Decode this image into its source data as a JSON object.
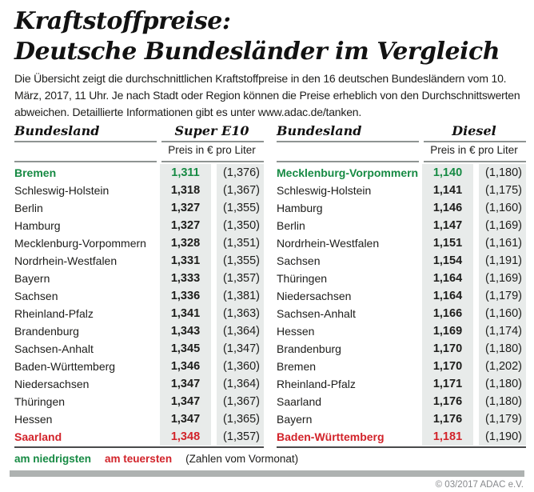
{
  "header": {
    "title_line1": "Kraftstoffpreise:",
    "title_line2": "Deutsche Bundesländer im Vergleich",
    "intro": "Die Übersicht zeigt die durchschnittlichen Kraftstoffpreise in den 16 deutschen Bundesländern vom 10. März, 2017, 11 Uhr. Je nach Stadt oder Region können die Preise erheblich von den Durchschnittswerten abweichen. Detaillierte Informationen gibt es unter www.adac.de/tanken."
  },
  "chart_data": [
    {
      "type": "table",
      "fuel": "Super E10",
      "col_header": "Bundesland",
      "unit": "Preis in € pro Liter",
      "columns": [
        "Bundesland",
        "Preis",
        "Vormonat"
      ],
      "rows": [
        {
          "name": "Bremen",
          "price": "1,311",
          "prev": "(1,376)",
          "highlight": "lowest"
        },
        {
          "name": "Schleswig-Holstein",
          "price": "1,318",
          "prev": "(1,367)"
        },
        {
          "name": "Berlin",
          "price": "1,327",
          "prev": "(1,355)"
        },
        {
          "name": "Hamburg",
          "price": "1,327",
          "prev": "(1,350)"
        },
        {
          "name": "Mecklenburg-Vorpommern",
          "price": "1,328",
          "prev": "(1,351)"
        },
        {
          "name": "Nordrhein-Westfalen",
          "price": "1,331",
          "prev": "(1,355)"
        },
        {
          "name": "Bayern",
          "price": "1,333",
          "prev": "(1,357)"
        },
        {
          "name": "Sachsen",
          "price": "1,336",
          "prev": "(1,381)"
        },
        {
          "name": "Rheinland-Pfalz",
          "price": "1,341",
          "prev": "(1,363)"
        },
        {
          "name": "Brandenburg",
          "price": "1,343",
          "prev": "(1,364)"
        },
        {
          "name": "Sachsen-Anhalt",
          "price": "1,345",
          "prev": "(1,347)"
        },
        {
          "name": "Baden-Württemberg",
          "price": "1,346",
          "prev": "(1,360)"
        },
        {
          "name": "Niedersachsen",
          "price": "1,347",
          "prev": "(1,364)"
        },
        {
          "name": "Thüringen",
          "price": "1,347",
          "prev": "(1,367)"
        },
        {
          "name": "Hessen",
          "price": "1,347",
          "prev": "(1,365)"
        },
        {
          "name": "Saarland",
          "price": "1,348",
          "prev": "(1,357)",
          "highlight": "highest"
        }
      ]
    },
    {
      "type": "table",
      "fuel": "Diesel",
      "col_header": "Bundesland",
      "unit": "Preis in € pro Liter",
      "columns": [
        "Bundesland",
        "Preis",
        "Vormonat"
      ],
      "rows": [
        {
          "name": "Mecklenburg-Vorpommern",
          "price": "1,140",
          "prev": "(1,180)",
          "highlight": "lowest"
        },
        {
          "name": "Schleswig-Holstein",
          "price": "1,141",
          "prev": "(1,175)"
        },
        {
          "name": "Hamburg",
          "price": "1,146",
          "prev": "(1,160)"
        },
        {
          "name": "Berlin",
          "price": "1,147",
          "prev": "(1,169)"
        },
        {
          "name": "Nordrhein-Westfalen",
          "price": "1,151",
          "prev": "(1,161)"
        },
        {
          "name": "Sachsen",
          "price": "1,154",
          "prev": "(1,191)"
        },
        {
          "name": "Thüringen",
          "price": "1,164",
          "prev": "(1,169)"
        },
        {
          "name": "Niedersachsen",
          "price": "1,164",
          "prev": "(1,179)"
        },
        {
          "name": "Sachsen-Anhalt",
          "price": "1,166",
          "prev": "(1,160)"
        },
        {
          "name": "Hessen",
          "price": "1,169",
          "prev": "(1,174)"
        },
        {
          "name": "Brandenburg",
          "price": "1,170",
          "prev": "(1,180)"
        },
        {
          "name": "Bremen",
          "price": "1,170",
          "prev": "(1,202)"
        },
        {
          "name": "Rheinland-Pfalz",
          "price": "1,171",
          "prev": "(1,180)"
        },
        {
          "name": "Saarland",
          "price": "1,176",
          "prev": "(1,180)"
        },
        {
          "name": "Bayern",
          "price": "1,176",
          "prev": "(1,179)"
        },
        {
          "name": "Baden-Württemberg",
          "price": "1,181",
          "prev": "(1,190)",
          "highlight": "highest"
        }
      ]
    }
  ],
  "legend": {
    "lowest_label": "am niedrigsten",
    "highest_label": "am teuersten",
    "note": "(Zahlen vom Vormonat)"
  },
  "footer": {
    "copyright": "© 03/2017 ADAC e.V."
  },
  "colors": {
    "lowest": "#168a43",
    "highest": "#d2232a",
    "band": "#e8ebea",
    "rule": "#8f9492",
    "dark_rule": "#4a4b4c",
    "footer_bar": "#aeb2b1"
  }
}
